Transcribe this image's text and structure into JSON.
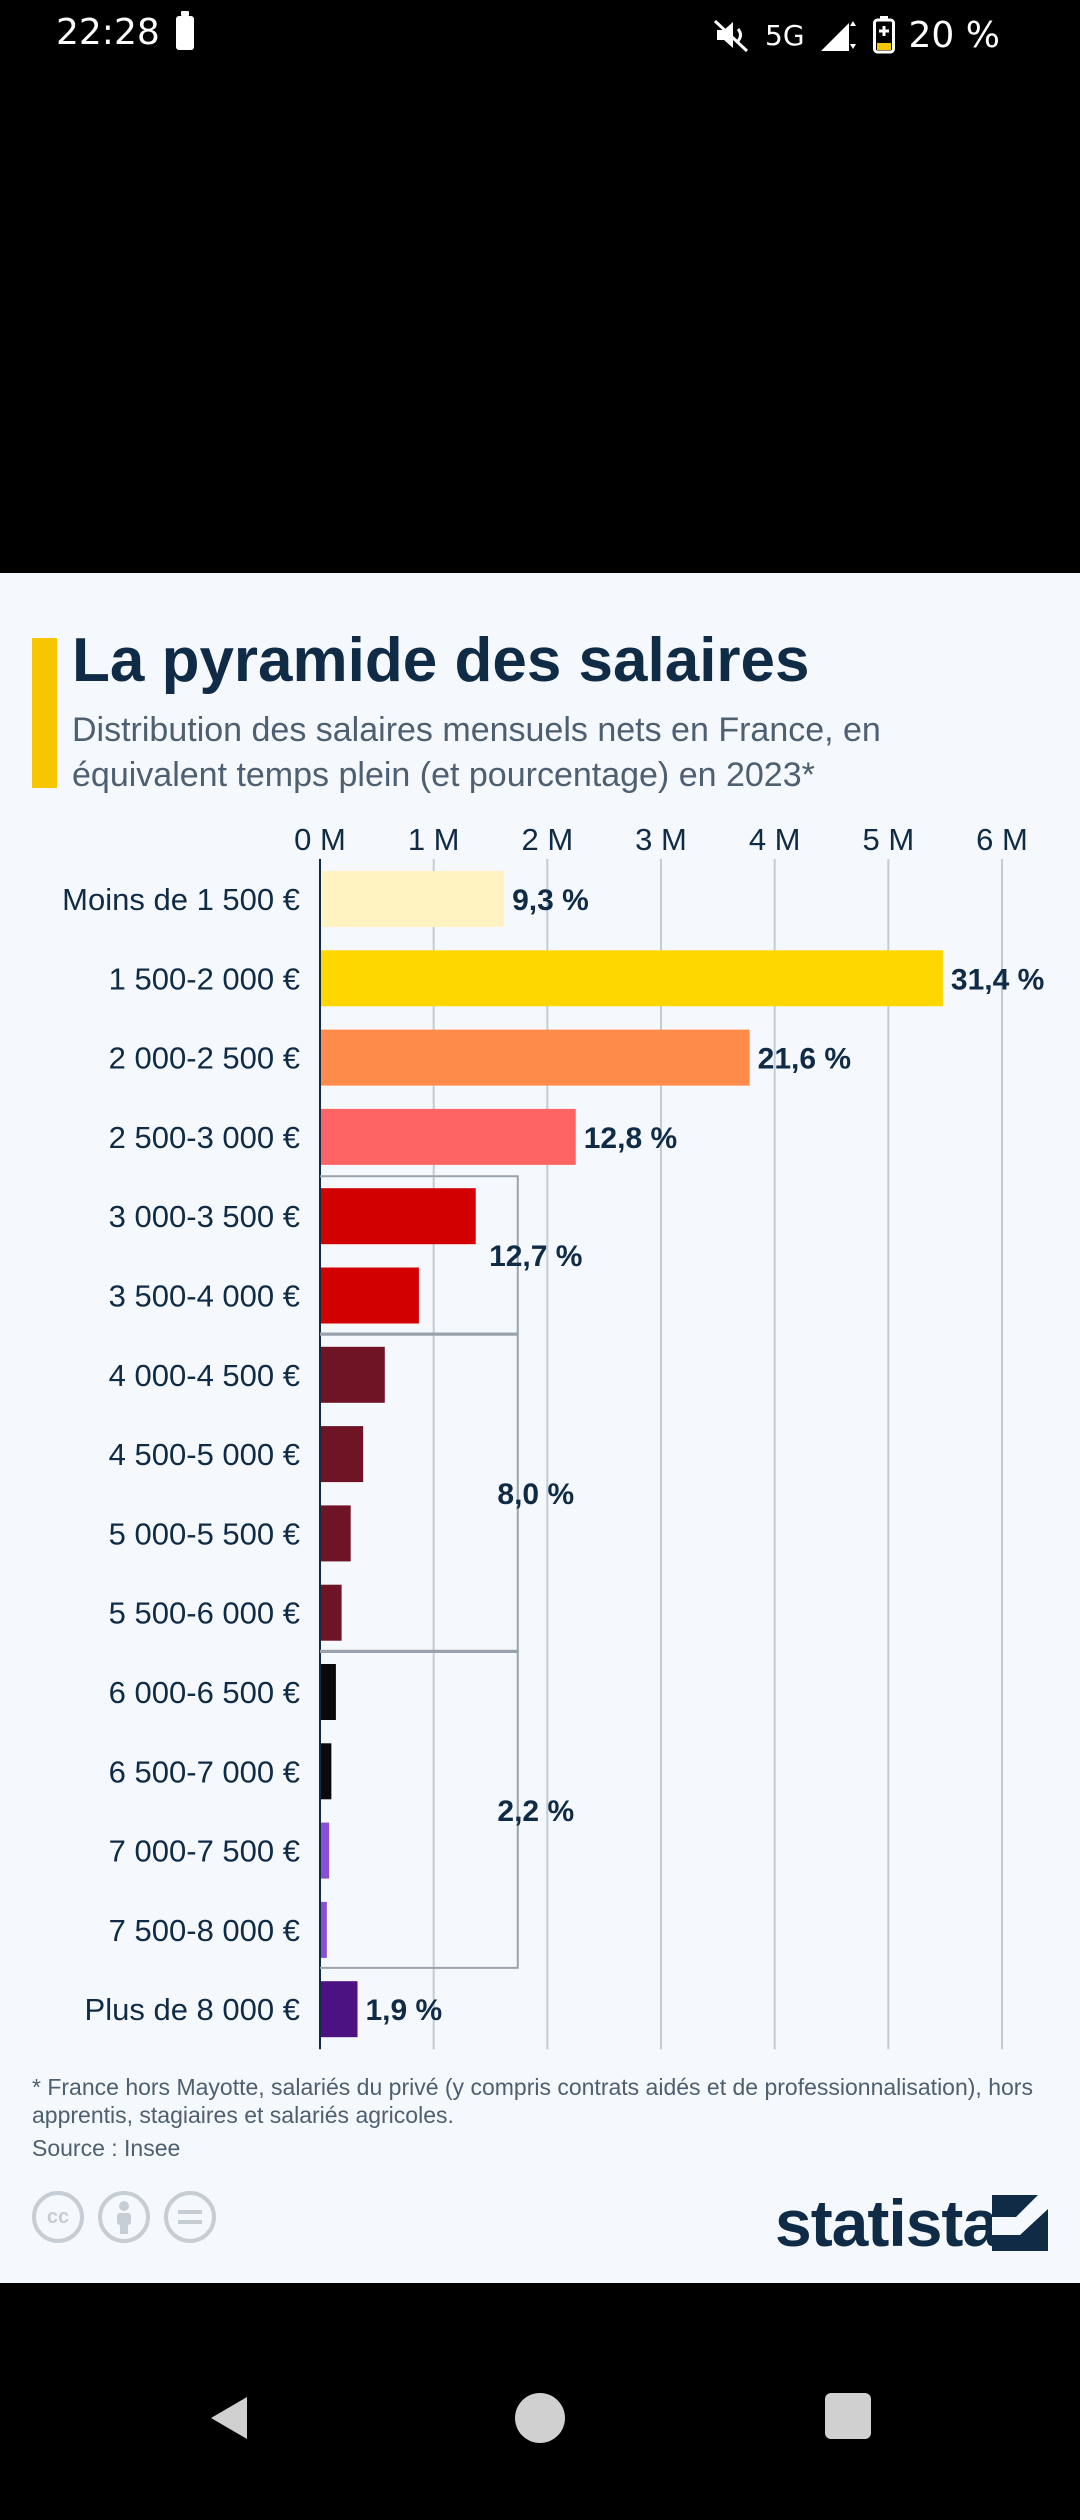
{
  "status_bar": {
    "time": "22:28",
    "network": "5G",
    "battery": "20 %"
  },
  "card": {
    "title": "La pyramide des salaires",
    "subtitle": "Distribution des salaires mensuels nets en France, en équivalent temps plein (et pourcentage) en 2023*",
    "footnote": "* France hors Mayotte, salariés du privé (y compris contrats aidés et de professionnalisation), hors apprentis, stagiaires et salariés agricoles.",
    "source": "Source : Insee",
    "brand": "statista",
    "license_icons": [
      "cc-icon",
      "by-icon",
      "nd-icon"
    ]
  },
  "chart_data": {
    "type": "bar",
    "orientation": "horizontal",
    "title": "La pyramide des salaires",
    "subtitle": "Distribution des salaires mensuels nets en France, en équivalent temps plein (et pourcentage) en 2023*",
    "xlim": [
      0,
      6
    ],
    "xticks": [
      "0 M",
      "1 M",
      "2 M",
      "3 M",
      "4 M",
      "5 M",
      "6 M"
    ],
    "grid": true,
    "categories": [
      "Moins de 1 500 €",
      "1 500-2 000 €",
      "2 000-2 500 €",
      "2 500-3 000 €",
      "3 000-3 500 €",
      "3 500-4 000 €",
      "4 000-4 500 €",
      "4 500-5 000 €",
      "5 000-5 500 €",
      "5 500-6 000 €",
      "6 000-6 500 €",
      "6 500-7 000 €",
      "7 000-7 500 €",
      "7 500-8 000 €",
      "Plus de 8 000 €"
    ],
    "values": [
      1.62,
      5.48,
      3.78,
      2.25,
      1.37,
      0.87,
      0.57,
      0.38,
      0.27,
      0.19,
      0.14,
      0.1,
      0.08,
      0.06,
      0.33
    ],
    "colors": [
      "#fff3c2",
      "#ffd700",
      "#ff8b4a",
      "#ff6464",
      "#d20000",
      "#d20000",
      "#6e1425",
      "#6e1425",
      "#6e1425",
      "#6e1425",
      "#0a0a0a",
      "#0a0a0a",
      "#8a4fd6",
      "#8a4fd6",
      "#4d1282"
    ],
    "bar_labels": [
      {
        "index": 0,
        "text": "9,3 %"
      },
      {
        "index": 1,
        "text": "31,4 %"
      },
      {
        "index": 2,
        "text": "21,6 %"
      },
      {
        "index": 3,
        "text": "12,8 %"
      },
      {
        "index": 14,
        "text": "1,9 %"
      }
    ],
    "group_labels": [
      {
        "from": 4,
        "to": 5,
        "text": "12,7 %"
      },
      {
        "from": 6,
        "to": 9,
        "text": "8,0 %"
      },
      {
        "from": 10,
        "to": 13,
        "text": "2,2 %"
      }
    ]
  }
}
